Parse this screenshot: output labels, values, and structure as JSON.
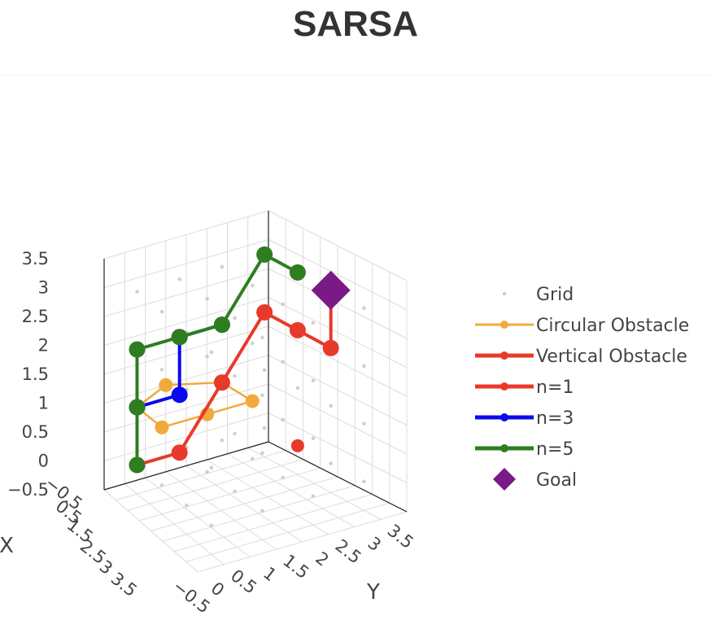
{
  "chart_title": "SARSA",
  "chart_data": {
    "type": "scatter3d",
    "title": "SARSA",
    "axes": {
      "x": {
        "label": "X",
        "range": [
          -0.5,
          3.5
        ],
        "ticks": [
          "−0.5",
          "0.5",
          "1.5",
          "2.5",
          "3",
          "3.5"
        ]
      },
      "y": {
        "label": "Y",
        "range": [
          -0.5,
          3.5
        ],
        "ticks": [
          "−0.5",
          "0",
          "0.5",
          "1",
          "1.5",
          "2",
          "2.5",
          "3",
          "3.5"
        ]
      },
      "z": {
        "label": "",
        "range": [
          -0.5,
          3.5
        ],
        "ticks": [
          "−0.5",
          "0",
          "0.5",
          "1",
          "1.5",
          "2",
          "2.5",
          "3",
          "3.5"
        ]
      }
    },
    "grid": true,
    "legend_position": "right",
    "series": [
      {
        "name": "Grid",
        "mode": "markers",
        "color": "#c8c8c8"
      },
      {
        "name": "Circular Obstacle",
        "mode": "lines+markers",
        "color": "#f2a93b"
      },
      {
        "name": "Vertical Obstacle",
        "mode": "lines+markers",
        "color": "#e8392a"
      },
      {
        "name": "n=1",
        "mode": "lines+markers",
        "color": "#e8392a"
      },
      {
        "name": "n=3",
        "mode": "lines+markers",
        "color": "#0a0aee"
      },
      {
        "name": "n=5",
        "mode": "lines+markers",
        "color": "#2e7d1f"
      },
      {
        "name": "Goal",
        "mode": "markers",
        "marker": "diamond",
        "color": "#7a1a86"
      }
    ]
  }
}
